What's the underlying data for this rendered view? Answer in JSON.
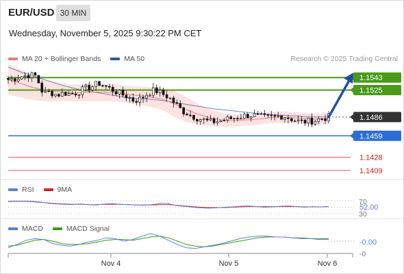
{
  "header": {
    "symbol": "EUR/USD",
    "timeframe": "30 MIN",
    "datetime": "Wednesday, November 5, 2025 9:30:22 PM CET"
  },
  "legends": {
    "main": [
      {
        "label": "MA 20 + Bollinger Bands",
        "color": "#f07b7b"
      },
      {
        "label": "MA 50",
        "color": "#2c5aa0"
      }
    ],
    "rsi": [
      {
        "label": "RSI",
        "color": "#5b7fd6"
      },
      {
        "label": "9MA",
        "color": "#d62020"
      }
    ],
    "macd": [
      {
        "label": "MACD",
        "color": "#5b7fd6"
      },
      {
        "label": "MACD Signal",
        "color": "#3a9a1a"
      }
    ]
  },
  "credit": "Research © 2025 Trading Central",
  "colors": {
    "bull_candle": "#ffffff",
    "bear_candle": "#111111",
    "band_fill": "#fde2e2",
    "resistance": "#4a9a1a",
    "support": "#2b6fd6",
    "minor_level": "#d62020",
    "arrow": "#1f4ea8"
  },
  "chart_data": [
    {
      "type": "candlestick",
      "title": "EUR/USD 30 MIN",
      "x_ticks": [
        "Nov 4",
        "Nov 5",
        "Nov 6"
      ],
      "ylim": [
        1.14,
        1.156
      ],
      "series_close_path": [
        1.154,
        1.1542,
        1.1545,
        1.1547,
        1.1545,
        1.152,
        1.1522,
        1.1518,
        1.1521,
        1.1519,
        1.1522,
        1.1527,
        1.153,
        1.1535,
        1.153,
        1.1525,
        1.152,
        1.1516,
        1.151,
        1.1512,
        1.152,
        1.1525,
        1.152,
        1.1515,
        1.1505,
        1.1495,
        1.149,
        1.1485,
        1.1482,
        1.1479,
        1.148,
        1.1482,
        1.1484,
        1.1486,
        1.1488,
        1.1489,
        1.1487,
        1.1485,
        1.1486,
        1.1488,
        1.1486,
        1.1482,
        1.1479,
        1.148,
        1.1481,
        1.1484,
        1.1486
      ],
      "ma50": [
        1.1558,
        1.1551,
        1.1545,
        1.1539,
        1.1533,
        1.1528,
        1.1524,
        1.1521,
        1.1518,
        1.1515,
        1.1513,
        1.1512,
        1.151,
        1.1507,
        1.1504,
        1.1501,
        1.1498,
        1.1496,
        1.1494,
        1.1492,
        1.149,
        1.1489,
        1.1488,
        1.1487,
        1.1486,
        1.1486
      ],
      "ma20": [
        1.154,
        1.1535,
        1.1529,
        1.1525,
        1.1523,
        1.1521,
        1.1521,
        1.1522,
        1.1522,
        1.1521,
        1.1519,
        1.1517,
        1.1515,
        1.1512,
        1.1505,
        1.1497,
        1.149,
        1.1485,
        1.1482,
        1.1481,
        1.1482,
        1.1483,
        1.1485,
        1.1486,
        1.1485,
        1.1484,
        1.1483,
        1.1484
      ],
      "levels": [
        {
          "value": "1.1543",
          "kind": "resistance"
        },
        {
          "value": "1.1525",
          "kind": "resistance"
        },
        {
          "value": "1.1486",
          "kind": "current"
        },
        {
          "value": "1.1459",
          "kind": "support"
        },
        {
          "value": "1.1428",
          "kind": "minor"
        },
        {
          "value": "1.1409",
          "kind": "minor"
        }
      ],
      "forecast_arrow": {
        "from": 1.1486,
        "to": 1.1543
      }
    },
    {
      "type": "line",
      "title": "RSI",
      "y_ticks": [
        "70",
        "30"
      ],
      "ylim": [
        30,
        70
      ],
      "current_value": "52.00",
      "rsi": [
        68,
        69,
        69,
        68,
        66,
        62,
        60,
        59,
        58,
        60,
        58,
        57,
        60,
        61,
        59,
        58,
        57,
        56,
        58,
        62,
        61,
        55,
        53,
        50,
        48,
        47,
        48,
        50,
        51,
        53,
        54,
        52,
        50,
        51,
        53,
        54,
        52,
        50,
        52,
        51,
        52
      ],
      "ma9": [
        67,
        68,
        68,
        67,
        65,
        63,
        61,
        60,
        59,
        59,
        58,
        58,
        59,
        59,
        59,
        58,
        57,
        57,
        57,
        58,
        58,
        56,
        54,
        52,
        50,
        49,
        49,
        49,
        50,
        51,
        52,
        52,
        52,
        52,
        52,
        52,
        52,
        51,
        51,
        51,
        52
      ]
    },
    {
      "type": "line",
      "title": "MACD",
      "y_ticks": [
        "-0"
      ],
      "current_value": "-0.00",
      "macd": [
        -0.0008,
        -0.0004,
        0.0001,
        0.0003,
        0.0002,
        -0.0003,
        -0.0005,
        -0.0006,
        -0.0004,
        -0.0001,
        0.0001,
        0.0004,
        0.0003,
        0.0,
        0.0002,
        0.0006,
        0.0009,
        0.0006,
        0.0001,
        -0.0004,
        -0.0008,
        -0.0009,
        -0.0007,
        -0.0005,
        -0.0003,
        0.0,
        0.0003,
        0.0005,
        0.0006,
        0.0006,
        0.0005,
        0.0005,
        0.0004,
        0.0003,
        0.0003,
        0.0002,
        0.0002
      ],
      "signal": [
        -0.0006,
        -0.0005,
        -0.0002,
        0.0001,
        0.0002,
        0.0,
        -0.0003,
        -0.0004,
        -0.0004,
        -0.0003,
        -0.0001,
        0.0001,
        0.0002,
        0.0002,
        0.0001,
        0.0003,
        0.0005,
        0.0006,
        0.0004,
        0.0,
        -0.0004,
        -0.0006,
        -0.0007,
        -0.0006,
        -0.0004,
        -0.0002,
        0.0,
        0.0002,
        0.0004,
        0.0005,
        0.0005,
        0.0005,
        0.0004,
        0.0004,
        0.0003,
        0.0003,
        0.0003
      ]
    }
  ]
}
